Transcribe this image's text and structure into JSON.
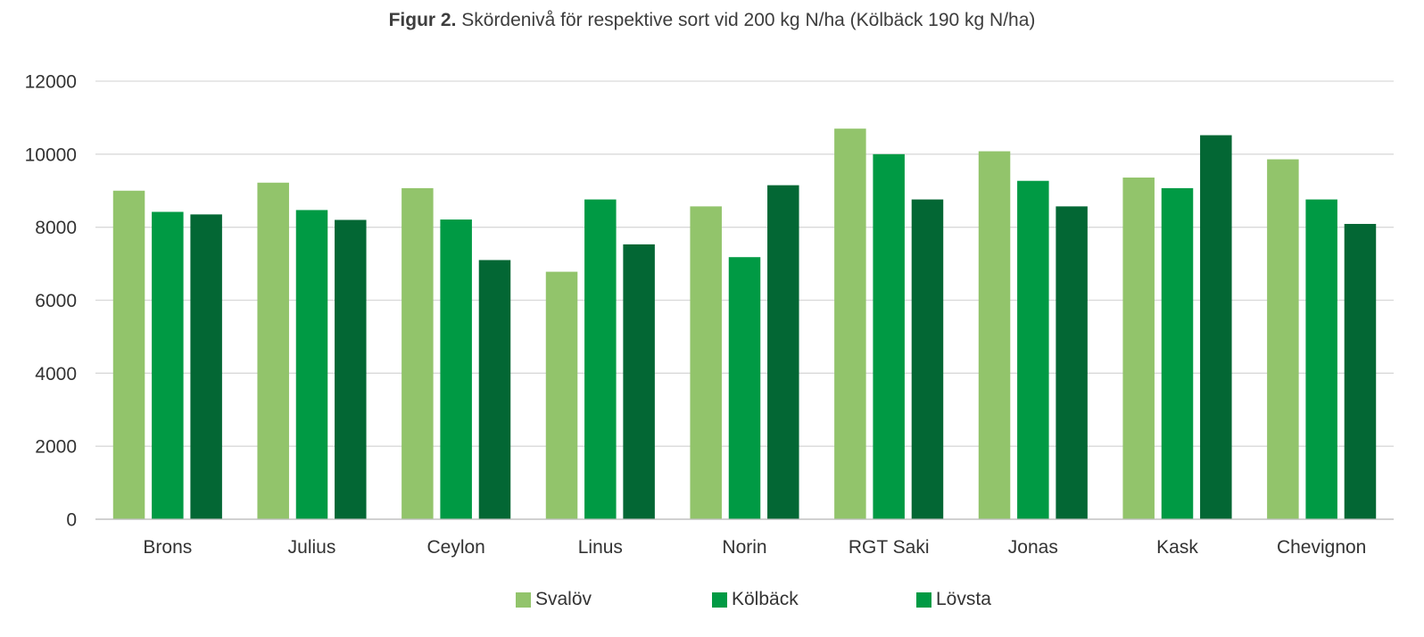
{
  "title": {
    "bold": "Figur 2.",
    "text": " Skördenivå för respektive sort vid 200 kg N/ha (Kölbäck 190 kg N/ha)"
  },
  "chart_data": {
    "type": "bar",
    "categories": [
      "Brons",
      "Julius",
      "Ceylon",
      "Linus",
      "Norin",
      "RGT Saki",
      "Jonas",
      "Kask",
      "Chevignon"
    ],
    "series": [
      {
        "name": "Svalöv",
        "color": "#92c46b",
        "values": [
          9000,
          9220,
          9070,
          6780,
          8570,
          10700,
          10080,
          9360,
          9860
        ]
      },
      {
        "name": "Kölbäck",
        "color": "#009a44",
        "values": [
          8420,
          8470,
          8210,
          8760,
          7180,
          10000,
          9270,
          9070,
          8760
        ]
      },
      {
        "name": "Lövsta",
        "color": "#036734",
        "legend_color": "#009a44",
        "values": [
          8350,
          8200,
          7100,
          7530,
          9150,
          8760,
          8570,
          10520,
          8090
        ]
      }
    ],
    "ylim": [
      0,
      12000
    ],
    "yticks": [
      "0",
      "2000",
      "4000",
      "6000",
      "8000",
      "10000",
      "12000"
    ],
    "grid": true,
    "legend_position": "bottom"
  }
}
